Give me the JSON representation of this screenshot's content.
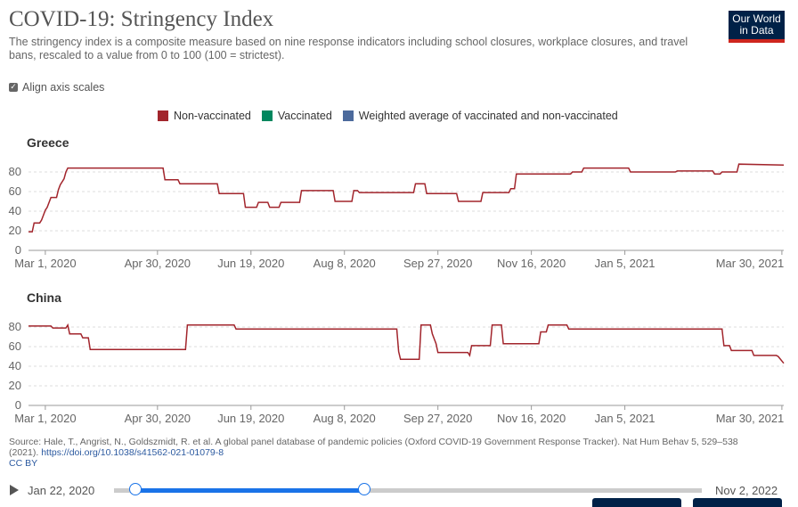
{
  "title": "COVID-19: Stringency Index",
  "subtitle": "The stringency index is a composite measure based on nine response indicators including school closures, workplace closures, and travel bans, rescaled to a value from 0 to 100 (100 = strictest).",
  "logo": {
    "line1": "Our World",
    "line2": "in Data"
  },
  "align_axis_label": "Align axis scales",
  "legend": [
    {
      "label": "Non-vaccinated",
      "color": "#a2252c"
    },
    {
      "label": "Vaccinated",
      "color": "#00875e"
    },
    {
      "label": "Weighted average of vaccinated and non-vaccinated",
      "color": "#4c6a9c"
    }
  ],
  "source_text": "Source: Hale, T., Angrist, N., Goldszmidt, R. et al. A global panel database of pandemic policies (Oxford COVID-19 Government Response Tracker). Nat Hum Behav 5, 529–538 (2021).",
  "source_link": "https://doi.org/10.1038/s41562-021-01079-8",
  "license": "CC BY",
  "timeline": {
    "start": "Jan 22, 2020",
    "end": "Nov 2, 2022"
  },
  "chart_data": [
    {
      "type": "line",
      "title": "Greece",
      "ylim": [
        0,
        90
      ],
      "yticks": [
        "0",
        "20",
        "40",
        "60",
        "80"
      ],
      "xticks": [
        "Mar 1, 2020",
        "Apr 30, 2020",
        "Jun 19, 2020",
        "Aug 8, 2020",
        "Sep 27, 2020",
        "Nov 16, 2020",
        "Jan 5, 2021",
        "Mar 30, 2021"
      ],
      "x_range": [
        "2020-02-21",
        "2021-03-31"
      ],
      "series": [
        {
          "name": "Non-vaccinated",
          "points": [
            [
              "2020-02-21",
              19
            ],
            [
              "2020-02-23",
              19
            ],
            [
              "2020-02-24",
              28
            ],
            [
              "2020-02-27",
              28
            ],
            [
              "2020-02-28",
              31
            ],
            [
              "2020-02-29",
              36
            ],
            [
              "2020-03-01",
              41
            ],
            [
              "2020-03-02",
              44
            ],
            [
              "2020-03-04",
              54
            ],
            [
              "2020-03-07",
              54
            ],
            [
              "2020-03-08",
              62
            ],
            [
              "2020-03-09",
              67
            ],
            [
              "2020-03-11",
              73
            ],
            [
              "2020-03-12",
              80
            ],
            [
              "2020-03-13",
              84
            ],
            [
              "2020-05-03",
              84
            ],
            [
              "2020-05-04",
              72
            ],
            [
              "2020-05-11",
              72
            ],
            [
              "2020-05-12",
              68
            ],
            [
              "2020-06-01",
              68
            ],
            [
              "2020-06-02",
              58
            ],
            [
              "2020-06-15",
              58
            ],
            [
              "2020-06-16",
              44
            ],
            [
              "2020-06-22",
              44
            ],
            [
              "2020-06-23",
              49
            ],
            [
              "2020-06-28",
              49
            ],
            [
              "2020-06-29",
              44
            ],
            [
              "2020-07-04",
              44
            ],
            [
              "2020-07-05",
              49
            ],
            [
              "2020-07-15",
              49
            ],
            [
              "2020-07-16",
              61
            ],
            [
              "2020-08-02",
              61
            ],
            [
              "2020-08-03",
              50
            ],
            [
              "2020-08-12",
              50
            ],
            [
              "2020-08-13",
              61
            ],
            [
              "2020-08-15",
              61
            ],
            [
              "2020-08-16",
              59
            ],
            [
              "2020-09-14",
              59
            ],
            [
              "2020-09-15",
              68
            ],
            [
              "2020-09-20",
              68
            ],
            [
              "2020-09-21",
              58
            ],
            [
              "2020-10-07",
              58
            ],
            [
              "2020-10-08",
              50
            ],
            [
              "2020-10-20",
              50
            ],
            [
              "2020-10-21",
              59
            ],
            [
              "2020-11-04",
              59
            ],
            [
              "2020-11-05",
              63
            ],
            [
              "2020-11-07",
              63
            ],
            [
              "2020-11-08",
              78
            ],
            [
              "2020-12-07",
              78
            ],
            [
              "2020-12-08",
              80
            ],
            [
              "2020-12-13",
              80
            ],
            [
              "2020-12-14",
              84
            ],
            [
              "2021-01-07",
              84
            ],
            [
              "2021-01-08",
              80
            ],
            [
              "2021-02-01",
              80
            ],
            [
              "2021-02-02",
              81
            ],
            [
              "2021-02-21",
              81
            ],
            [
              "2021-02-22",
              78
            ],
            [
              "2021-02-25",
              78
            ],
            [
              "2021-02-26",
              80
            ],
            [
              "2021-03-06",
              80
            ],
            [
              "2021-03-07",
              88
            ],
            [
              "2021-03-31",
              87
            ]
          ]
        }
      ]
    },
    {
      "type": "line",
      "title": "China",
      "ylim": [
        0,
        90
      ],
      "yticks": [
        "0",
        "20",
        "40",
        "60",
        "80"
      ],
      "xticks": [
        "Mar 1, 2020",
        "Apr 30, 2020",
        "Jun 19, 2020",
        "Aug 8, 2020",
        "Sep 27, 2020",
        "Nov 16, 2020",
        "Jan 5, 2021",
        "Mar 30, 2021"
      ],
      "x_range": [
        "2020-02-21",
        "2021-03-31"
      ],
      "series": [
        {
          "name": "Non-vaccinated",
          "points": [
            [
              "2020-02-21",
              81
            ],
            [
              "2020-03-04",
              81
            ],
            [
              "2020-03-05",
              79
            ],
            [
              "2020-03-12",
              79
            ],
            [
              "2020-03-13",
              82
            ],
            [
              "2020-03-14",
              73
            ],
            [
              "2020-03-20",
              73
            ],
            [
              "2020-03-21",
              69
            ],
            [
              "2020-03-24",
              69
            ],
            [
              "2020-03-25",
              57
            ],
            [
              "2020-05-15",
              57
            ],
            [
              "2020-05-16",
              82
            ],
            [
              "2020-06-10",
              82
            ],
            [
              "2020-06-11",
              78
            ],
            [
              "2020-09-05",
              78
            ],
            [
              "2020-09-06",
              55
            ],
            [
              "2020-09-07",
              47
            ],
            [
              "2020-09-17",
              47
            ],
            [
              "2020-09-18",
              82
            ],
            [
              "2020-09-23",
              82
            ],
            [
              "2020-09-24",
              73
            ],
            [
              "2020-09-26",
              63
            ],
            [
              "2020-09-27",
              54
            ],
            [
              "2020-10-13",
              54
            ],
            [
              "2020-10-14",
              51
            ],
            [
              "2020-10-15",
              61
            ],
            [
              "2020-10-25",
              61
            ],
            [
              "2020-10-26",
              82
            ],
            [
              "2020-10-31",
              82
            ],
            [
              "2020-11-01",
              63
            ],
            [
              "2020-11-20",
              63
            ],
            [
              "2020-11-21",
              75
            ],
            [
              "2020-11-24",
              75
            ],
            [
              "2020-11-25",
              82
            ],
            [
              "2020-12-05",
              82
            ],
            [
              "2020-12-06",
              78
            ],
            [
              "2021-02-26",
              78
            ],
            [
              "2021-02-27",
              61
            ],
            [
              "2021-03-02",
              61
            ],
            [
              "2021-03-03",
              56
            ],
            [
              "2021-03-14",
              56
            ],
            [
              "2021-03-15",
              51
            ],
            [
              "2021-03-27",
              51
            ],
            [
              "2021-03-28",
              50
            ],
            [
              "2021-03-31",
              43
            ]
          ]
        }
      ]
    }
  ]
}
